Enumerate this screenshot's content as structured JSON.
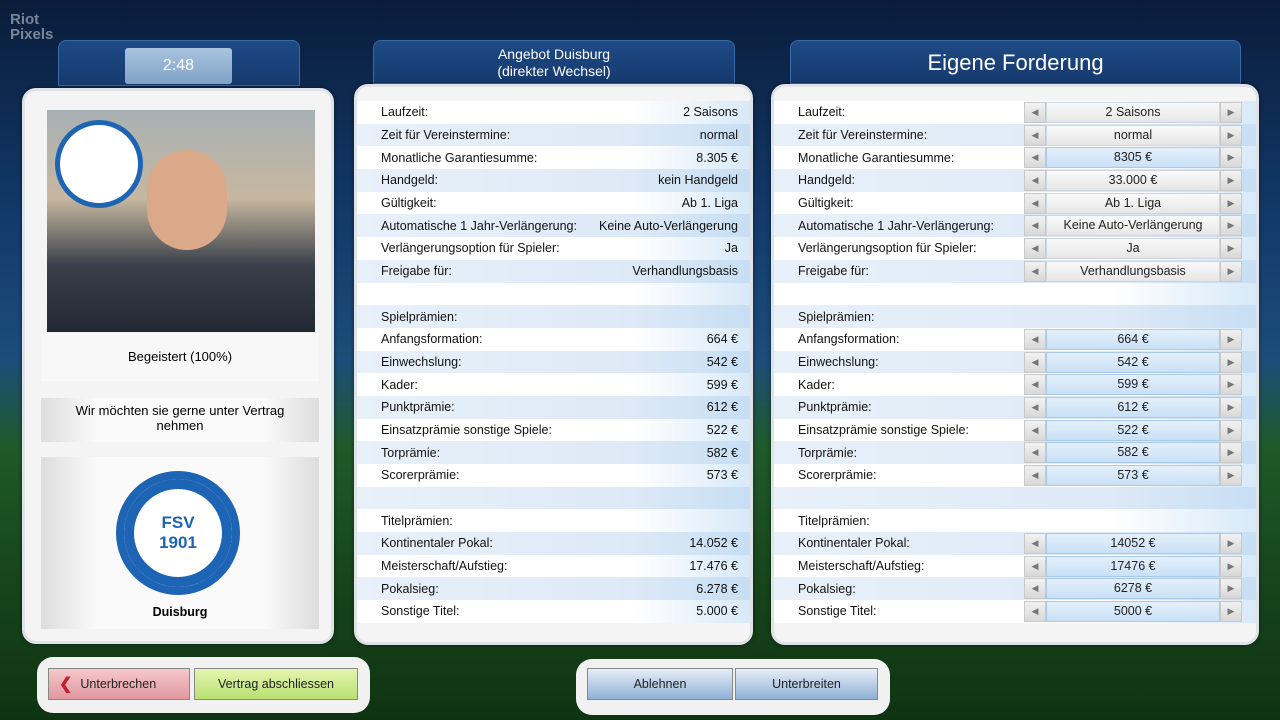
{
  "watermark": "Riot Pixels",
  "timer": "2:48",
  "player": {
    "mood": "Begeistert (100%)",
    "message": "Wir möchten sie gerne unter Vertrag nehmen",
    "club_name": "Duisburg",
    "club_badge_text": "FSV 1901"
  },
  "offer": {
    "title": "Angebot Duisburg",
    "subtitle": "(direkter Wechsel)",
    "rows": [
      {
        "label": "Laufzeit:",
        "value": "2 Saisons"
      },
      {
        "label": "Zeit für Vereinstermine:",
        "value": "normal"
      },
      {
        "label": "Monatliche Garantiesumme:",
        "value": "8.305 €"
      },
      {
        "label": "Handgeld:",
        "value": "kein Handgeld"
      },
      {
        "label": "Gültigkeit:",
        "value": "Ab 1. Liga"
      },
      {
        "label": "Automatische 1 Jahr-Verlängerung:",
        "value": "Keine Auto-Verlängerung"
      },
      {
        "label": "Verlängerungsoption für Spieler:",
        "value": "Ja"
      },
      {
        "label": "Freigabe für:",
        "value": "Verhandlungsbasis"
      },
      {
        "label": "",
        "value": ""
      },
      {
        "label": "Spielprämien:",
        "value": ""
      },
      {
        "label": "Anfangsformation:",
        "value": "664 €"
      },
      {
        "label": "Einwechslung:",
        "value": "542 €"
      },
      {
        "label": "Kader:",
        "value": "599 €"
      },
      {
        "label": "Punktprämie:",
        "value": "612 €"
      },
      {
        "label": "Einsatzprämie sonstige Spiele:",
        "value": "522 €"
      },
      {
        "label": "Torprämie:",
        "value": "582 €"
      },
      {
        "label": "Scorerprämie:",
        "value": "573 €"
      },
      {
        "label": "",
        "value": ""
      },
      {
        "label": "Titelprämien:",
        "value": ""
      },
      {
        "label": "Kontinentaler Pokal:",
        "value": "14.052 €"
      },
      {
        "label": "Meisterschaft/Aufstieg:",
        "value": "17.476 €"
      },
      {
        "label": "Pokalsieg:",
        "value": "6.278 €"
      },
      {
        "label": "Sonstige Titel:",
        "value": "5.000 €"
      }
    ]
  },
  "demand": {
    "title": "Eigene Forderung",
    "rows": [
      {
        "label": "Laufzeit:",
        "value": "2 Saisons"
      },
      {
        "label": "Zeit für Vereinstermine:",
        "value": "normal"
      },
      {
        "label": "Monatliche Garantiesumme:",
        "value": "8305 €",
        "hl": true
      },
      {
        "label": "Handgeld:",
        "value": "33.000 €"
      },
      {
        "label": "Gültigkeit:",
        "value": "Ab 1. Liga"
      },
      {
        "label": "Automatische 1 Jahr-Verlängerung:",
        "value": "Keine Auto-Verlängerung"
      },
      {
        "label": "Verlängerungsoption für Spieler:",
        "value": "Ja"
      },
      {
        "label": "Freigabe für:",
        "value": "Verhandlungsbasis"
      },
      {
        "label": "",
        "value": null
      },
      {
        "label": "Spielprämien:",
        "value": null
      },
      {
        "label": "Anfangsformation:",
        "value": "664 €",
        "hl": true
      },
      {
        "label": "Einwechslung:",
        "value": "542 €",
        "hl": true
      },
      {
        "label": "Kader:",
        "value": "599 €",
        "hl": true
      },
      {
        "label": "Punktprämie:",
        "value": "612 €",
        "hl": true
      },
      {
        "label": "Einsatzprämie sonstige Spiele:",
        "value": "522 €",
        "hl": true
      },
      {
        "label": "Torprämie:",
        "value": "582 €",
        "hl": true
      },
      {
        "label": "Scorerprämie:",
        "value": "573 €",
        "hl": true
      },
      {
        "label": "",
        "value": null
      },
      {
        "label": "Titelprämien:",
        "value": null
      },
      {
        "label": "Kontinentaler Pokal:",
        "value": "14052 €",
        "hl": true
      },
      {
        "label": "Meisterschaft/Aufstieg:",
        "value": "17476 €",
        "hl": true
      },
      {
        "label": "Pokalsieg:",
        "value": "6278 €",
        "hl": true
      },
      {
        "label": "Sonstige Titel:",
        "value": "5000 €",
        "hl": true
      }
    ]
  },
  "buttons": {
    "interrupt": "Unterbrechen",
    "sign": "Vertrag abschliessen",
    "reject": "Ablehnen",
    "submit": "Unterbreiten"
  },
  "icons": {
    "prev": "◀",
    "next": "▶",
    "back": "❮"
  }
}
